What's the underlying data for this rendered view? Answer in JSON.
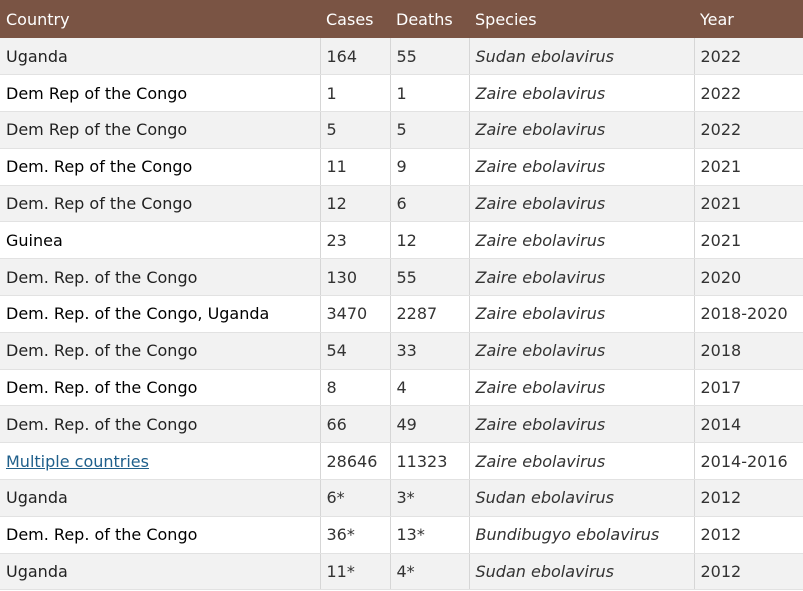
{
  "table": {
    "headers": {
      "country": "Country",
      "cases": "Cases",
      "deaths": "Deaths",
      "species": "Species",
      "year": "Year"
    },
    "rows": [
      {
        "country": "Uganda",
        "cases": "164",
        "deaths": "55",
        "species": "Sudan ebolavirus",
        "year": "2022"
      },
      {
        "country": "Dem Rep of the Congo",
        "cases": "1",
        "deaths": "1",
        "species": "Zaire ebolavirus",
        "year": "2022"
      },
      {
        "country": "Dem Rep of the Congo",
        "cases": "5",
        "deaths": "5",
        "species": "Zaire ebolavirus",
        "year": "2022"
      },
      {
        "country": "Dem. Rep of the Congo",
        "cases": "11",
        "deaths": "9",
        "species": "Zaire ebolavirus",
        "year": "2021"
      },
      {
        "country": "Dem. Rep of the Congo",
        "cases": "12",
        "deaths": "6",
        "species": "Zaire ebolavirus",
        "year": "2021"
      },
      {
        "country": "Guinea",
        "cases": "23",
        "deaths": "12",
        "species": "Zaire ebolavirus",
        "year": "2021"
      },
      {
        "country": "Dem. Rep. of the Congo",
        "cases": "130",
        "deaths": "55",
        "species": "Zaire ebolavirus",
        "year": "2020"
      },
      {
        "country": "Dem. Rep. of the Congo, Uganda",
        "cases": "3470",
        "deaths": "2287",
        "species": "Zaire ebolavirus",
        "year": "2018-2020"
      },
      {
        "country": "Dem. Rep. of the Congo",
        "cases": "54",
        "deaths": "33",
        "species": "Zaire ebolavirus",
        "year": "2018"
      },
      {
        "country": "Dem. Rep. of the Congo",
        "cases": "8",
        "deaths": "4",
        "species": "Zaire ebolavirus",
        "year": "2017"
      },
      {
        "country": "Dem. Rep. of the Congo",
        "cases": "66",
        "deaths": "49",
        "species": "Zaire ebolavirus",
        "year": "2014"
      },
      {
        "country": "Multiple countries",
        "cases": "28646",
        "deaths": "11323",
        "species": "Zaire ebolavirus",
        "year": "2014-2016"
      },
      {
        "country": "Uganda",
        "cases": "6*",
        "deaths": "3*",
        "species": "Sudan ebolavirus",
        "year": "2012"
      },
      {
        "country": "Dem. Rep. of the Congo",
        "cases": "36*",
        "deaths": "13*",
        "species": "Bundibugyo ebolavirus",
        "year": "2012"
      },
      {
        "country": "Uganda",
        "cases": "11*",
        "deaths": "4*",
        "species": "Sudan ebolavirus",
        "year": "2012"
      }
    ]
  },
  "colors": {
    "header_bg": "#7a5444",
    "header_text": "#ffffff",
    "row_alt_bg": "#f2f2f2",
    "link": "#1f5f8b"
  }
}
